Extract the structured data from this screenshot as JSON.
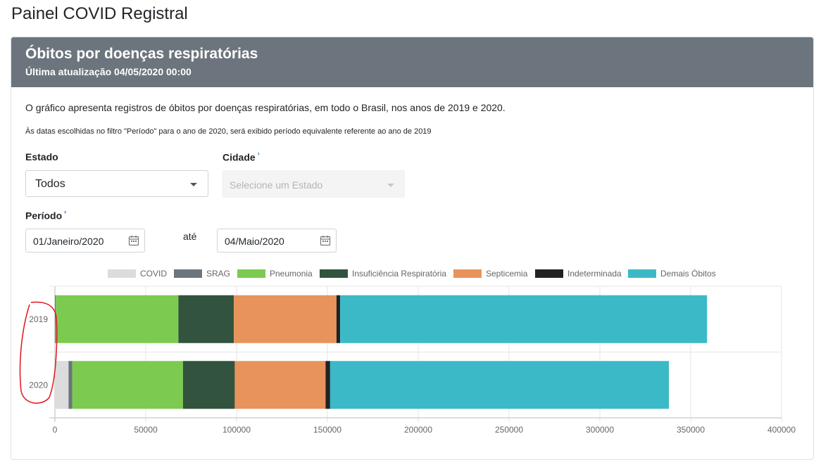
{
  "page": {
    "title": "Painel COVID Registral"
  },
  "card": {
    "title": "Óbitos por doenças respiratórias",
    "subtitle": "Última atualização 04/05/2020 00:00",
    "description": "O gráfico apresenta registros de óbitos por doenças respiratórias, em todo o Brasil, nos anos de 2019 e 2020.",
    "note": "Às datas escolhidas no filtro \"Período\" para o ano de 2020, será exibido período equivalente referente ao ano de 2019"
  },
  "filters": {
    "estado_label": "Estado",
    "estado_value": "Todos",
    "cidade_label": "Cidade",
    "cidade_sup": "¹",
    "cidade_placeholder": "Selecione um Estado",
    "periodo_label": "Período",
    "periodo_sup": "²",
    "date_start": "01/Janeiro/2020",
    "date_separator": "até",
    "date_end": "04/Maio/2020",
    "icons": {
      "calendar": "calendar-icon",
      "dropdown": "chevron-down-icon"
    }
  },
  "chart_data": {
    "type": "bar",
    "orientation": "horizontal",
    "stacked": true,
    "categories": [
      "2019",
      "2020"
    ],
    "series": [
      {
        "name": "COVID",
        "color": "#dcdcdc",
        "values": [
          0,
          7500
        ]
      },
      {
        "name": "SRAG",
        "color": "#6c757d",
        "values": [
          500,
          2000
        ]
      },
      {
        "name": "Pneumonia",
        "color": "#7ccb50",
        "values": [
          67500,
          61000
        ]
      },
      {
        "name": "Insuficiência Respiratória",
        "color": "#32533e",
        "values": [
          30500,
          28500
        ]
      },
      {
        "name": "Septicemia",
        "color": "#e8935c",
        "values": [
          56500,
          50000
        ]
      },
      {
        "name": "Indeterminada",
        "color": "#222222",
        "values": [
          2000,
          2500
        ]
      },
      {
        "name": "Demais Óbitos",
        "color": "#3cb9c6",
        "values": [
          202000,
          186500
        ]
      }
    ],
    "xlim": [
      0,
      400000
    ],
    "xticks": [
      "0",
      "50000",
      "100000",
      "150000",
      "200000",
      "250000",
      "300000",
      "350000",
      "400000"
    ],
    "grid": true,
    "legend_position": "top"
  }
}
